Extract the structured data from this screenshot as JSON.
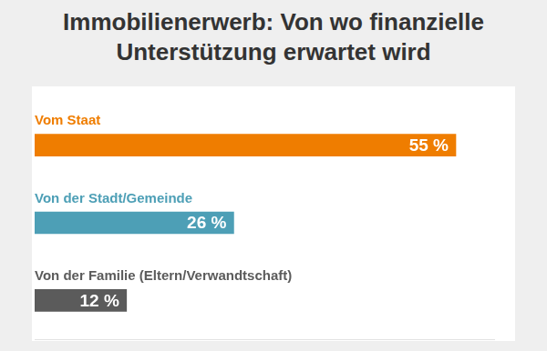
{
  "chart_data": {
    "type": "bar",
    "title": "Immobilienerwerb: Von wo finanzielle Unterstützung erwartet wird",
    "categories": [
      "Vom Staat",
      "Von der Stadt/Gemeinde",
      "Von der Familie (Eltern/Verwandtschaft)"
    ],
    "values": [
      55,
      26,
      12
    ],
    "value_labels": [
      "55 %",
      "26 %",
      "12 %"
    ],
    "colors": [
      "#ef7d00",
      "#4d9fb6",
      "#5b5b5b"
    ],
    "orientation": "horizontal",
    "xlim": [
      0,
      60
    ],
    "grid": false,
    "tick_labels": false,
    "data_labels": true
  }
}
